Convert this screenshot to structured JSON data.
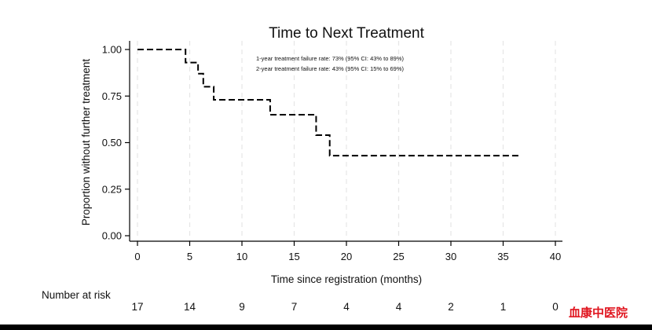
{
  "chart_data": {
    "type": "line",
    "title": "Time to Next Treatment",
    "xlabel": "Time since registration (months)",
    "ylabel": "Proportion without further treatment",
    "xlim": [
      0,
      40
    ],
    "ylim": [
      0,
      1
    ],
    "xticks": [
      "0",
      "5",
      "10",
      "15",
      "20",
      "25",
      "30",
      "35",
      "40"
    ],
    "yticks": [
      "0.00",
      "0.25",
      "0.50",
      "0.75",
      "1.00"
    ],
    "grid": "vertical dashed",
    "step_curve": {
      "x": [
        0,
        4.6,
        5.8,
        6.3,
        7.3,
        12.7,
        17.1,
        18.4,
        36.5
      ],
      "y": [
        1.0,
        0.93,
        0.87,
        0.8,
        0.73,
        0.65,
        0.54,
        0.43,
        0.43
      ],
      "style": "dashed",
      "color": "#000000"
    },
    "annotations": [
      "1-year treatment failure rate: 73% (95% CI: 43% to 89%)",
      "2-year treatment failure rate: 43% (95% CI: 15% to 69%)"
    ],
    "risk_table": {
      "label": "Number at risk",
      "times": [
        0,
        5,
        10,
        15,
        20,
        25,
        30,
        35,
        40
      ],
      "counts": [
        "17",
        "14",
        "9",
        "7",
        "4",
        "4",
        "2",
        "1",
        "0"
      ]
    }
  },
  "watermark": {
    "text": "血康中医院",
    "color": "#e0141e"
  }
}
